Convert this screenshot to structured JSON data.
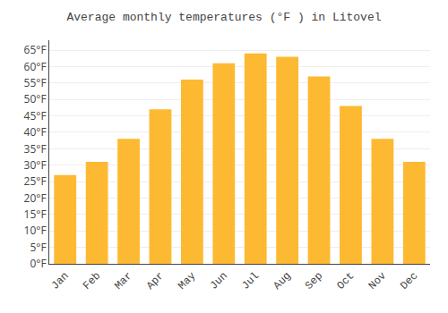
{
  "chart_data": {
    "type": "bar",
    "title": "Average monthly temperatures (°F ) in Litovel",
    "categories": [
      "Jan",
      "Feb",
      "Mar",
      "Apr",
      "May",
      "Jun",
      "Jul",
      "Aug",
      "Sep",
      "Oct",
      "Nov",
      "Dec"
    ],
    "values": [
      27,
      31,
      38,
      47,
      56,
      61,
      64,
      63,
      57,
      48,
      38,
      31
    ],
    "color": "#FDB931",
    "ylim": [
      0,
      68
    ],
    "yticks": [
      {
        "value": 0,
        "label": "0°F"
      },
      {
        "value": 5,
        "label": "5°F"
      },
      {
        "value": 10,
        "label": "10°F"
      },
      {
        "value": 15,
        "label": "15°F"
      },
      {
        "value": 20,
        "label": "20°F"
      },
      {
        "value": 25,
        "label": "25°F"
      },
      {
        "value": 30,
        "label": "30°F"
      },
      {
        "value": 35,
        "label": "35°F"
      },
      {
        "value": 40,
        "label": "40°F"
      },
      {
        "value": 45,
        "label": "45°F"
      },
      {
        "value": 50,
        "label": "50°F"
      },
      {
        "value": 55,
        "label": "55°F"
      },
      {
        "value": 60,
        "label": "60°F"
      },
      {
        "value": 65,
        "label": "65°F"
      }
    ],
    "grid": true
  }
}
